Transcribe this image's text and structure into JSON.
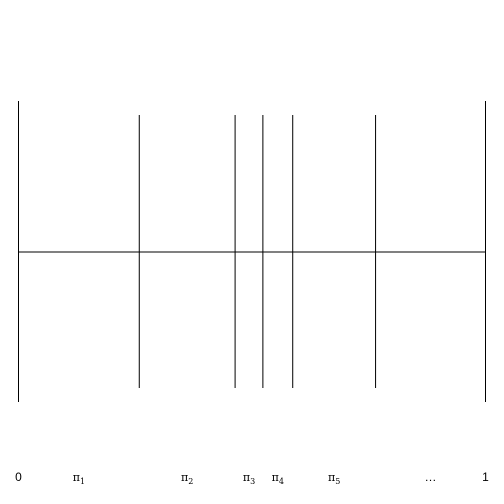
{
  "diagram": {
    "stroke_color": "#000000",
    "background_color": "#ffffff",
    "domain": [
      0,
      1
    ],
    "tall_lines": [
      0,
      1
    ],
    "break_points": [
      0.2586,
      0.4638,
      0.5233,
      0.5872,
      0.7646
    ],
    "labels": [
      {
        "id": "zero",
        "text": "0",
        "x": 0,
        "kind": "plain"
      },
      {
        "id": "pi1",
        "base": "π",
        "sub": "1",
        "x": 0.1293,
        "kind": "pi"
      },
      {
        "id": "pi2",
        "base": "π",
        "sub": "2",
        "x": 0.3612,
        "kind": "pi"
      },
      {
        "id": "pi3",
        "base": "π",
        "sub": "3",
        "x": 0.4936,
        "kind": "pi"
      },
      {
        "id": "pi4",
        "base": "π",
        "sub": "4",
        "x": 0.5553,
        "kind": "pi"
      },
      {
        "id": "pi5",
        "base": "π",
        "sub": "5",
        "x": 0.6759,
        "kind": "pi"
      },
      {
        "id": "dots",
        "text": "…",
        "x": 0.8823,
        "kind": "plain"
      },
      {
        "id": "one",
        "text": "1",
        "x": 1,
        "kind": "plain"
      }
    ]
  }
}
